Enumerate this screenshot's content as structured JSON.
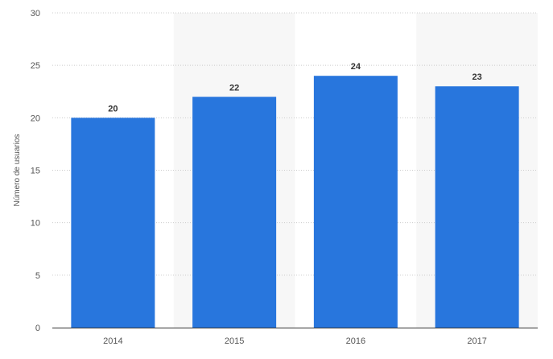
{
  "chart_data": {
    "type": "bar",
    "categories": [
      "2014",
      "2015",
      "2016",
      "2017"
    ],
    "values": [
      20,
      22,
      24,
      23
    ],
    "data_labels": [
      "20",
      "22",
      "24",
      "23"
    ],
    "ylabel": "Número de usuarios",
    "xlabel": "",
    "ylim": [
      0,
      30
    ],
    "yticks": [
      "0",
      "5",
      "10",
      "15",
      "20",
      "25",
      "30"
    ],
    "grid": "horizontal dotted",
    "colors": {
      "bar": "#2876dd",
      "band": "#f7f7f7",
      "grid": "#cccccc",
      "axis": "#333333"
    }
  }
}
